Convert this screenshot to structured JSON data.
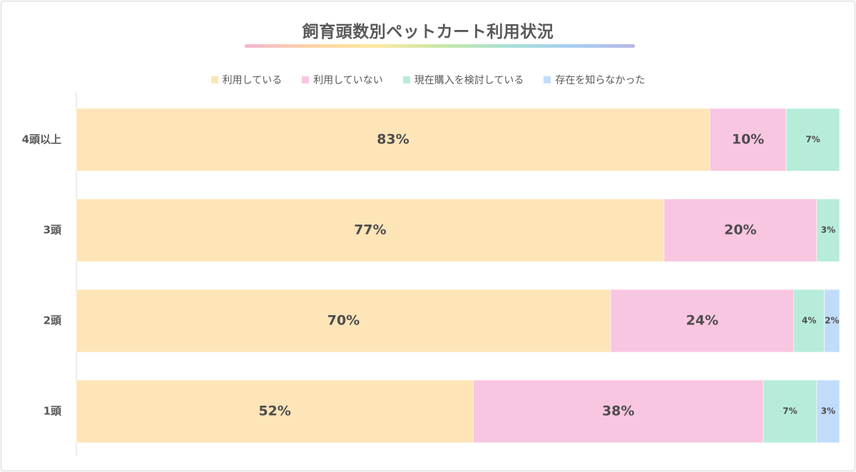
{
  "chart_data": {
    "type": "bar",
    "orientation": "horizontal",
    "stacked": true,
    "title": "飼育頭数別ペットカート利用状況",
    "categories": [
      "4頭以上",
      "3頭",
      "2頭",
      "1頭"
    ],
    "series": [
      {
        "name": "利用している",
        "color": "#fde5b8",
        "values": [
          83,
          77,
          70,
          52
        ],
        "labels": [
          "83%",
          "77%",
          "70%",
          "52%"
        ]
      },
      {
        "name": "利用していない",
        "color": "#f9c6e1",
        "values": [
          10,
          20,
          24,
          38
        ],
        "labels": [
          "10%",
          "20%",
          "24%",
          "38%"
        ]
      },
      {
        "name": "現在購入を検討している",
        "color": "#b7ecdb",
        "values": [
          7,
          3,
          4,
          7
        ],
        "labels": [
          "7%",
          "3%",
          "4%",
          "7%"
        ]
      },
      {
        "name": "存在を知らなかった",
        "color": "#c1dcfb",
        "values": [
          0,
          0,
          2,
          3
        ],
        "labels": [
          "",
          "",
          "2%",
          "3%"
        ]
      }
    ],
    "xlim": [
      0,
      100
    ],
    "grid": false,
    "legend": "top-center",
    "title_underline_colors": [
      "#f4b6cf",
      "#fbd3a6",
      "#fde9a0",
      "#c9e8a6",
      "#a9e0d4",
      "#a7d0f2",
      "#b7b8e6"
    ]
  }
}
